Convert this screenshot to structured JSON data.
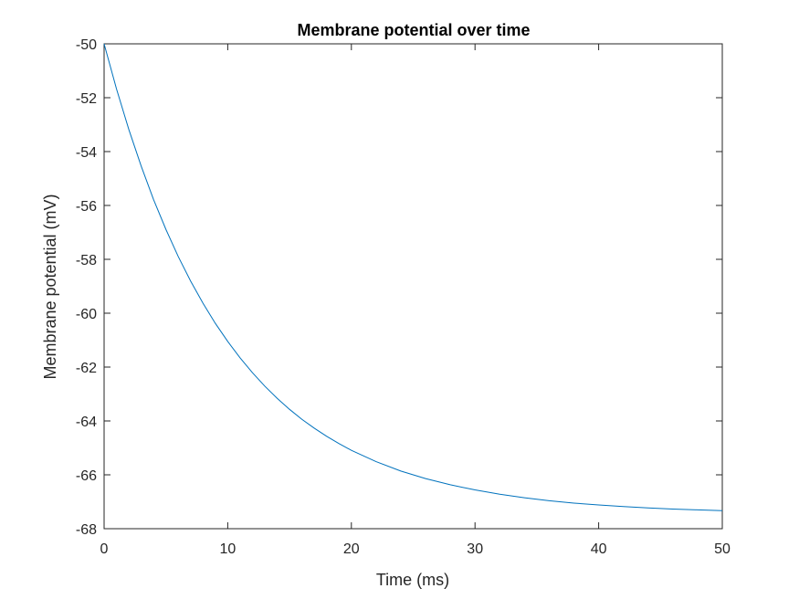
{
  "chart_data": {
    "type": "line",
    "title": "Membrane potential over time",
    "xlabel": "Time (ms)",
    "ylabel": "Membrane potential (mV)",
    "xlim": [
      0,
      50
    ],
    "ylim": [
      -68,
      -50
    ],
    "xticks": [
      0,
      10,
      20,
      30,
      40,
      50
    ],
    "yticks": [
      -50,
      -52,
      -54,
      -56,
      -58,
      -60,
      -62,
      -64,
      -66,
      -68
    ],
    "grid": false,
    "box": true,
    "series": [
      {
        "color": "#0072BD",
        "x": [
          0,
          1,
          2,
          3,
          4,
          5,
          6,
          7,
          8,
          9,
          10,
          11,
          12,
          13,
          14,
          15,
          16,
          17,
          18,
          19,
          20,
          22,
          24,
          26,
          28,
          30,
          32,
          34,
          36,
          38,
          40,
          42,
          44,
          46,
          48,
          50
        ],
        "y": [
          -50.0,
          -51.67,
          -53.18,
          -54.54,
          -55.78,
          -56.89,
          -57.9,
          -58.81,
          -59.63,
          -60.38,
          -61.05,
          -61.66,
          -62.21,
          -62.71,
          -63.16,
          -63.57,
          -63.94,
          -64.27,
          -64.57,
          -64.84,
          -65.09,
          -65.51,
          -65.86,
          -66.14,
          -66.37,
          -66.56,
          -66.72,
          -66.85,
          -66.96,
          -67.05,
          -67.12,
          -67.18,
          -67.23,
          -67.27,
          -67.3,
          -67.33
        ]
      }
    ]
  }
}
